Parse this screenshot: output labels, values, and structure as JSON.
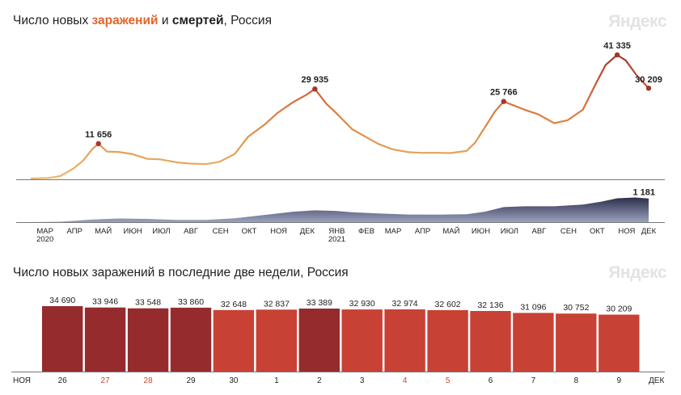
{
  "top_title": {
    "prefix": "Число новых ",
    "infections": "заражений",
    "middle": " и ",
    "deaths": "смертей",
    "suffix": ", Россия"
  },
  "bottom_title": "Число новых заражений в последние две недели, Россия",
  "watermark": "Яндекс",
  "colors": {
    "infections_low": "#e8b96b",
    "infections_mid": "#dd7a3c",
    "infections_high": "#a5352d",
    "deaths_area_top": "#2c2f4a",
    "deaths_area_bottom": "#9aa2bf",
    "bar_weekend": "#962b2e",
    "bar_weekday": "#c84135",
    "weekend_label": "#d2452e"
  },
  "chart_data": [
    {
      "type": "line",
      "name": "infections_and_deaths_timeline",
      "x_ticks": [
        "МАР",
        "АПР",
        "МАЙ",
        "ИЮН",
        "ИЮЛ",
        "АВГ",
        "СЕН",
        "ОКТ",
        "НОЯ",
        "ДЕК",
        "ЯНВ",
        "ФЕВ",
        "МАР",
        "АПР",
        "МАЙ",
        "ИЮН",
        "ИЮЛ",
        "АВГ",
        "СЕН",
        "ОКТ",
        "НОЯ",
        "ДЕК"
      ],
      "year_labels": [
        {
          "text": "2020",
          "under": "МАР"
        },
        {
          "text": "2021",
          "under": "ЯНВ"
        }
      ],
      "x_range": [
        "2020-03-01",
        "2021-12-09"
      ],
      "series": [
        {
          "role": "new_infections",
          "points": [
            [
              "2020-03-01",
              0
            ],
            [
              "2020-03-20",
              200
            ],
            [
              "2020-04-01",
              800
            ],
            [
              "2020-04-15",
              3400
            ],
            [
              "2020-04-25",
              6000
            ],
            [
              "2020-05-05",
              10000
            ],
            [
              "2020-05-11",
              11656
            ],
            [
              "2020-05-20",
              9000
            ],
            [
              "2020-06-01",
              8900
            ],
            [
              "2020-06-15",
              8200
            ],
            [
              "2020-07-01",
              6600
            ],
            [
              "2020-07-15",
              6400
            ],
            [
              "2020-08-01",
              5400
            ],
            [
              "2020-08-15",
              5000
            ],
            [
              "2020-09-01",
              4800
            ],
            [
              "2020-09-15",
              5600
            ],
            [
              "2020-10-01",
              8200
            ],
            [
              "2020-10-15",
              14000
            ],
            [
              "2020-11-01",
              18000
            ],
            [
              "2020-11-15",
              22000
            ],
            [
              "2020-12-01",
              25500
            ],
            [
              "2020-12-15",
              28000
            ],
            [
              "2020-12-24",
              29935
            ],
            [
              "2021-01-05",
              25000
            ],
            [
              "2021-01-15",
              22000
            ],
            [
              "2021-02-01",
              16500
            ],
            [
              "2021-02-15",
              14000
            ],
            [
              "2021-03-01",
              11500
            ],
            [
              "2021-03-15",
              9800
            ],
            [
              "2021-04-01",
              8800
            ],
            [
              "2021-04-15",
              8600
            ],
            [
              "2021-05-01",
              8600
            ],
            [
              "2021-05-15",
              8500
            ],
            [
              "2021-06-01",
              9200
            ],
            [
              "2021-06-10",
              12000
            ],
            [
              "2021-06-20",
              17000
            ],
            [
              "2021-07-01",
              22500
            ],
            [
              "2021-07-10",
              25766
            ],
            [
              "2021-07-20",
              24500
            ],
            [
              "2021-08-01",
              23000
            ],
            [
              "2021-08-15",
              21500
            ],
            [
              "2021-09-01",
              18500
            ],
            [
              "2021-09-15",
              19500
            ],
            [
              "2021-10-01",
              23000
            ],
            [
              "2021-10-15",
              32000
            ],
            [
              "2021-10-25",
              38000
            ],
            [
              "2021-11-06",
              41335
            ],
            [
              "2021-11-15",
              39500
            ],
            [
              "2021-11-26",
              34690
            ],
            [
              "2021-12-09",
              30209
            ]
          ],
          "labels": [
            {
              "date": "2020-05-11",
              "text": "11 656"
            },
            {
              "date": "2020-12-24",
              "text": "29 935"
            },
            {
              "date": "2021-07-10",
              "text": "25 766"
            },
            {
              "date": "2021-11-06",
              "text": "41 335"
            },
            {
              "date": "2021-12-09",
              "text": "30 209"
            }
          ],
          "y_range": [
            0,
            41335
          ]
        },
        {
          "role": "new_deaths",
          "type": "area",
          "points": [
            [
              "2020-03-01",
              0
            ],
            [
              "2020-04-01",
              20
            ],
            [
              "2020-05-01",
              120
            ],
            [
              "2020-06-01",
              180
            ],
            [
              "2020-07-01",
              160
            ],
            [
              "2020-08-01",
              110
            ],
            [
              "2020-09-01",
              110
            ],
            [
              "2020-10-01",
              190
            ],
            [
              "2020-11-01",
              360
            ],
            [
              "2020-12-01",
              520
            ],
            [
              "2020-12-24",
              590
            ],
            [
              "2021-01-15",
              560
            ],
            [
              "2021-02-01",
              490
            ],
            [
              "2021-03-01",
              430
            ],
            [
              "2021-04-01",
              380
            ],
            [
              "2021-05-01",
              370
            ],
            [
              "2021-06-01",
              390
            ],
            [
              "2021-06-20",
              520
            ],
            [
              "2021-07-10",
              750
            ],
            [
              "2021-08-01",
              790
            ],
            [
              "2021-09-01",
              790
            ],
            [
              "2021-10-01",
              880
            ],
            [
              "2021-10-20",
              1020
            ],
            [
              "2021-11-06",
              1190
            ],
            [
              "2021-11-25",
              1230
            ],
            [
              "2021-12-09",
              1181
            ]
          ],
          "labels": [
            {
              "date": "2021-12-09",
              "text": "1 181"
            }
          ],
          "y_range": [
            0,
            1250
          ]
        }
      ]
    },
    {
      "type": "bar",
      "name": "last_two_weeks",
      "categories": [
        "26",
        "27",
        "28",
        "29",
        "30",
        "1",
        "2",
        "3",
        "4",
        "5",
        "6",
        "7",
        "8",
        "9"
      ],
      "values": [
        34690,
        33946,
        33548,
        33860,
        32648,
        32837,
        33389,
        32930,
        32974,
        32602,
        32136,
        31096,
        30752,
        30209
      ],
      "value_labels": [
        "34 690",
        "33 946",
        "33 548",
        "33 860",
        "32 648",
        "32 837",
        "33 389",
        "32 930",
        "32 974",
        "32 602",
        "32 136",
        "31 096",
        "30 752",
        "30 209"
      ],
      "highlighted": [
        true,
        true,
        true,
        true,
        false,
        false,
        true,
        false,
        false,
        false,
        false,
        false,
        false,
        false
      ],
      "weekend_days": [
        false,
        true,
        true,
        false,
        false,
        false,
        false,
        false,
        true,
        true,
        false,
        false,
        false,
        false
      ],
      "month_start_label": "НОЯ",
      "month_end_label": "ДЕК",
      "ylim": [
        0,
        34690
      ]
    }
  ]
}
